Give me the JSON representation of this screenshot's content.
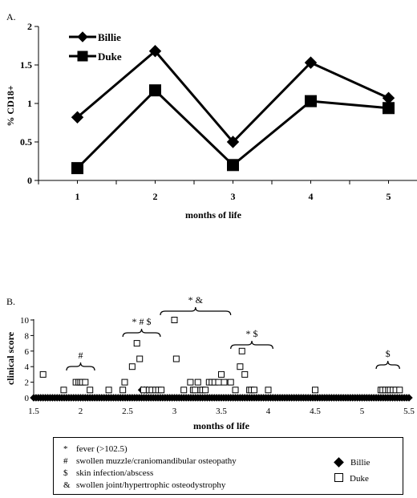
{
  "panel_a": {
    "label": "A."
  },
  "panel_b": {
    "label": "B."
  },
  "chart_data": [
    {
      "type": "line",
      "title": "",
      "xlabel": "months of life",
      "ylabel": "% CD18+",
      "categories": [
        "1",
        "2",
        "3",
        "4",
        "5"
      ],
      "xlim": [
        0.5,
        5.5
      ],
      "ylim": [
        0,
        2
      ],
      "yticks": [
        "0",
        "0.5",
        "1",
        "1.5",
        "2"
      ],
      "grid": false,
      "legend_position": "top-left",
      "series": [
        {
          "name": "Billie",
          "marker": "diamond",
          "color": "#000000",
          "values": [
            0.82,
            1.68,
            0.5,
            1.53,
            1.07
          ]
        },
        {
          "name": "Duke",
          "marker": "square",
          "color": "#000000",
          "values": [
            0.16,
            1.17,
            0.2,
            1.03,
            0.94
          ]
        }
      ]
    },
    {
      "type": "scatter",
      "title": "",
      "xlabel": "months of life",
      "ylabel": "clinical score",
      "xlim": [
        1.5,
        5.5
      ],
      "ylim": [
        0,
        10
      ],
      "xticks": [
        "1.5",
        "2",
        "2.5",
        "3",
        "3.5",
        "4",
        "4.5",
        "5",
        "5.5"
      ],
      "yticks": [
        "0",
        "2",
        "4",
        "6",
        "8",
        "10"
      ],
      "grid": false,
      "series": [
        {
          "name": "Billie",
          "marker": "diamond",
          "color": "#000000",
          "x": [
            1.5,
            1.525,
            1.55,
            1.575,
            1.6,
            1.625,
            1.65,
            1.675,
            1.7,
            1.725,
            1.75,
            1.775,
            1.8,
            1.825,
            1.85,
            1.875,
            1.9,
            1.925,
            1.95,
            1.975,
            2,
            2.025,
            2.05,
            2.075,
            2.1,
            2.125,
            2.15,
            2.175,
            2.2,
            2.225,
            2.25,
            2.275,
            2.3,
            2.325,
            2.35,
            2.375,
            2.4,
            2.425,
            2.45,
            2.475,
            2.5,
            2.525,
            2.55,
            2.575,
            2.6,
            2.625,
            2.65,
            2.675,
            2.7,
            2.725,
            2.75,
            2.775,
            2.8,
            2.825,
            2.85,
            2.875,
            2.9,
            2.925,
            2.95,
            2.975,
            3,
            3.025,
            3.05,
            3.075,
            3.1,
            3.125,
            3.15,
            3.175,
            3.2,
            3.225,
            3.25,
            3.275,
            3.3,
            3.325,
            3.35,
            3.375,
            3.4,
            3.425,
            3.45,
            3.475,
            3.5,
            3.525,
            3.55,
            3.575,
            3.6,
            3.625,
            3.65,
            3.675,
            3.7,
            3.725,
            3.75,
            3.775,
            3.8,
            3.825,
            3.85,
            3.875,
            3.9,
            3.925,
            3.95,
            3.975,
            4,
            4.025,
            4.05,
            4.075,
            4.1,
            4.125,
            4.15,
            4.175,
            4.2,
            4.225,
            4.25,
            4.275,
            4.3,
            4.325,
            4.35,
            4.375,
            4.4,
            4.425,
            4.45,
            4.475,
            4.5,
            4.525,
            4.55,
            4.575,
            4.6,
            4.625,
            4.65,
            4.675,
            4.7,
            4.725,
            4.75,
            4.775,
            4.8,
            4.825,
            4.85,
            4.875,
            4.9,
            4.925,
            4.95,
            4.975,
            5,
            5.025,
            5.05,
            5.075,
            5.1,
            5.125,
            5.15,
            5.175,
            5.2,
            5.225,
            5.25,
            5.275,
            5.3,
            5.325,
            5.35,
            5.375,
            5.4,
            5.425,
            5.45,
            5.475,
            5.5,
            2.65,
            2.68,
            2.71
          ],
          "y": [
            0,
            0,
            0,
            0,
            0,
            0,
            0,
            0,
            0,
            0,
            0,
            0,
            0,
            0,
            0,
            0,
            0,
            0,
            0,
            0,
            0,
            0,
            0,
            0,
            0,
            0,
            0,
            0,
            0,
            0,
            0,
            0,
            0,
            0,
            0,
            0,
            0,
            0,
            0,
            0,
            0,
            0,
            0,
            0,
            0,
            0,
            0,
            0,
            0,
            0,
            0,
            0,
            0,
            0,
            0,
            0,
            0,
            0,
            0,
            0,
            0,
            0,
            0,
            0,
            0,
            0,
            0,
            0,
            0,
            0,
            0,
            0,
            0,
            0,
            0,
            0,
            0,
            0,
            0,
            0,
            0,
            0,
            0,
            0,
            0,
            0,
            0,
            0,
            0,
            0,
            0,
            0,
            0,
            0,
            0,
            0,
            0,
            0,
            0,
            0,
            0,
            0,
            0,
            0,
            0,
            0,
            0,
            0,
            0,
            0,
            0,
            0,
            0,
            0,
            0,
            0,
            0,
            0,
            0,
            0,
            0,
            0,
            0,
            0,
            0,
            0,
            0,
            0,
            0,
            0,
            0,
            0,
            0,
            0,
            0,
            0,
            0,
            0,
            0,
            0,
            0,
            0,
            0,
            0,
            0,
            0,
            0,
            0,
            0,
            0,
            0,
            0,
            0,
            0,
            0,
            0,
            0,
            0,
            0,
            0,
            0,
            1,
            1,
            1
          ]
        },
        {
          "name": "Duke",
          "marker": "square",
          "color": "#000000",
          "x": [
            1.6,
            1.82,
            1.95,
            1.98,
            2.0,
            2.02,
            2.05,
            2.1,
            2.3,
            2.45,
            2.47,
            2.55,
            2.6,
            2.63,
            2.67,
            2.73,
            2.76,
            2.8,
            2.83,
            2.86,
            3.0,
            3.02,
            3.1,
            3.17,
            3.2,
            3.22,
            3.25,
            3.28,
            3.3,
            3.33,
            3.37,
            3.4,
            3.43,
            3.47,
            3.5,
            3.53,
            3.6,
            3.65,
            3.7,
            3.72,
            3.75,
            3.8,
            3.82,
            3.85,
            4.0,
            4.5,
            5.2,
            5.22,
            5.25,
            5.28,
            5.3,
            5.33,
            5.36,
            5.4
          ],
          "y": [
            3,
            1,
            2,
            2,
            2,
            2,
            2,
            1,
            1,
            1,
            2,
            4,
            7,
            5,
            1,
            1,
            1,
            1,
            1,
            1,
            10,
            5,
            1,
            2,
            1,
            1,
            2,
            1,
            1,
            1,
            2,
            2,
            2,
            2,
            3,
            2,
            2,
            1,
            4,
            6,
            3,
            1,
            1,
            1,
            1,
            1,
            1,
            1,
            1,
            1,
            1,
            1,
            1,
            1
          ]
        }
      ],
      "annotations": [
        {
          "text": "#",
          "x": [
            1.85,
            2.15
          ]
        },
        {
          "text": "* # $",
          "x": [
            2.45,
            2.85
          ]
        },
        {
          "text": "* &",
          "x": [
            2.85,
            3.6
          ]
        },
        {
          "text": "* $",
          "x": [
            3.6,
            4.05
          ]
        },
        {
          "text": "$",
          "x": [
            5.15,
            5.4
          ]
        }
      ],
      "footnotes": [
        {
          "symbol": "*",
          "text": "fever (>102.5)"
        },
        {
          "symbol": "#",
          "text": "swollen muzzle/craniomandibular osteopathy"
        },
        {
          "symbol": "$",
          "text": "skin infection/abscess"
        },
        {
          "symbol": "&",
          "text": "swollen joint/hypertrophic osteodystrophy"
        }
      ]
    }
  ]
}
